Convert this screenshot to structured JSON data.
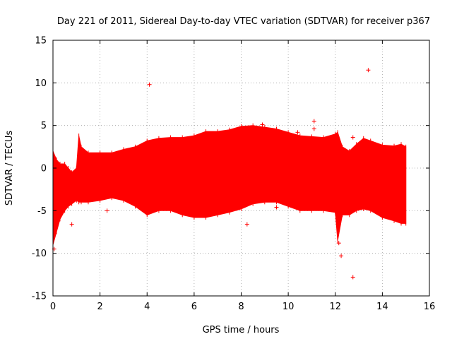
{
  "chart_data": {
    "type": "scatter",
    "title": "Day 221 of 2011, Sidereal Day-to-day VTEC variation (SDTVAR) for receiver p367",
    "xlabel": "GPS time / hours",
    "ylabel": "SDTVAR / TECUs",
    "xlim": [
      0,
      16
    ],
    "ylim": [
      -15,
      15
    ],
    "xticks": [
      "0",
      "2",
      "4",
      "6",
      "8",
      "10",
      "12",
      "14",
      "16"
    ],
    "yticks": [
      "-15",
      "-10",
      "-5",
      "0",
      "5",
      "10",
      "15"
    ],
    "grid": true,
    "color": "#ff0000",
    "band": [
      {
        "x": 0.0,
        "lo": -9.0,
        "hi": 2.0
      },
      {
        "x": 0.15,
        "lo": -7.5,
        "hi": 1.0
      },
      {
        "x": 0.3,
        "lo": -6.0,
        "hi": 0.5
      },
      {
        "x": 0.5,
        "lo": -5.0,
        "hi": 0.5
      },
      {
        "x": 0.65,
        "lo": -4.5,
        "hi": 0.0
      },
      {
        "x": 0.8,
        "lo": -4.2,
        "hi": -0.5
      },
      {
        "x": 1.0,
        "lo": -3.8,
        "hi": 0.0
      },
      {
        "x": 1.1,
        "lo": -4.0,
        "hi": 3.8
      },
      {
        "x": 1.2,
        "lo": -4.0,
        "hi": 2.5
      },
      {
        "x": 1.5,
        "lo": -4.0,
        "hi": 1.8
      },
      {
        "x": 2.0,
        "lo": -3.8,
        "hi": 1.8
      },
      {
        "x": 2.5,
        "lo": -3.5,
        "hi": 1.8
      },
      {
        "x": 3.0,
        "lo": -3.8,
        "hi": 2.2
      },
      {
        "x": 3.5,
        "lo": -4.5,
        "hi": 2.5
      },
      {
        "x": 4.0,
        "lo": -5.5,
        "hi": 3.2
      },
      {
        "x": 4.5,
        "lo": -5.0,
        "hi": 3.5
      },
      {
        "x": 5.0,
        "lo": -5.0,
        "hi": 3.6
      },
      {
        "x": 5.5,
        "lo": -5.5,
        "hi": 3.6
      },
      {
        "x": 6.0,
        "lo": -5.8,
        "hi": 3.8
      },
      {
        "x": 6.5,
        "lo": -5.8,
        "hi": 4.3
      },
      {
        "x": 7.0,
        "lo": -5.5,
        "hi": 4.3
      },
      {
        "x": 7.5,
        "lo": -5.2,
        "hi": 4.5
      },
      {
        "x": 8.0,
        "lo": -4.8,
        "hi": 4.9
      },
      {
        "x": 8.5,
        "lo": -4.2,
        "hi": 5.0
      },
      {
        "x": 9.0,
        "lo": -4.0,
        "hi": 4.8
      },
      {
        "x": 9.5,
        "lo": -4.0,
        "hi": 4.6
      },
      {
        "x": 10.0,
        "lo": -4.5,
        "hi": 4.2
      },
      {
        "x": 10.5,
        "lo": -5.0,
        "hi": 3.8
      },
      {
        "x": 11.0,
        "lo": -5.0,
        "hi": 3.7
      },
      {
        "x": 11.5,
        "lo": -5.0,
        "hi": 3.6
      },
      {
        "x": 12.0,
        "lo": -5.2,
        "hi": 4.0
      },
      {
        "x": 12.1,
        "lo": -8.5,
        "hi": 4.2
      },
      {
        "x": 12.3,
        "lo": -5.5,
        "hi": 2.5
      },
      {
        "x": 12.6,
        "lo": -5.5,
        "hi": 2.0
      },
      {
        "x": 12.9,
        "lo": -5.0,
        "hi": 2.8
      },
      {
        "x": 13.2,
        "lo": -4.8,
        "hi": 3.5
      },
      {
        "x": 13.5,
        "lo": -5.0,
        "hi": 3.2
      },
      {
        "x": 14.0,
        "lo": -5.8,
        "hi": 2.7
      },
      {
        "x": 14.5,
        "lo": -6.2,
        "hi": 2.6
      },
      {
        "x": 14.8,
        "lo": -6.5,
        "hi": 2.8
      },
      {
        "x": 15.0,
        "lo": -6.5,
        "hi": 2.5
      }
    ],
    "outliers": [
      {
        "x": 4.1,
        "y": 9.8
      },
      {
        "x": 13.4,
        "y": 11.5
      },
      {
        "x": 11.1,
        "y": 5.5
      },
      {
        "x": 11.1,
        "y": 4.6
      },
      {
        "x": 12.75,
        "y": 3.6
      },
      {
        "x": 12.75,
        "y": -12.8
      },
      {
        "x": 8.25,
        "y": -6.6
      },
      {
        "x": 0.8,
        "y": -6.6
      },
      {
        "x": 12.25,
        "y": -10.3
      },
      {
        "x": 12.15,
        "y": -8.8
      },
      {
        "x": 0.05,
        "y": -9.5
      },
      {
        "x": 2.3,
        "y": -5.0
      },
      {
        "x": 9.5,
        "y": -4.6
      },
      {
        "x": 10.4,
        "y": 4.2
      },
      {
        "x": 8.9,
        "y": 5.1
      }
    ]
  }
}
